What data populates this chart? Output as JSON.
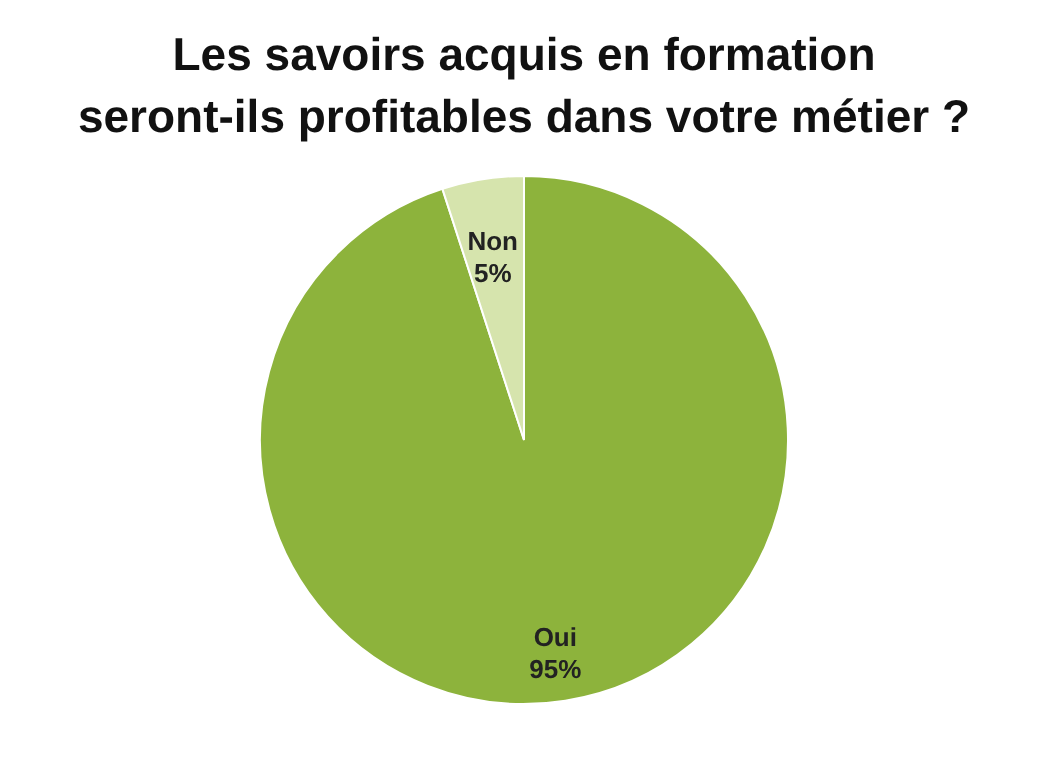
{
  "chart_data": {
    "type": "pie",
    "title": "Les savoirs acquis en formation\nseront-ils profitables dans votre métier ?",
    "categories": [
      "Oui",
      "Non"
    ],
    "values": [
      95,
      5
    ],
    "colors": [
      "#8db33c",
      "#d6e4ad"
    ],
    "value_labels": [
      "95%",
      "5%"
    ]
  }
}
